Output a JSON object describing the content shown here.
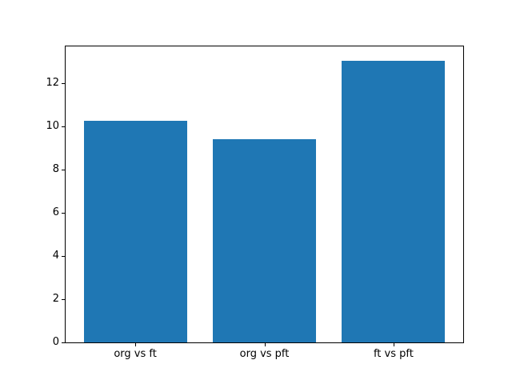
{
  "figure": {
    "background": "#ffffff",
    "spine_color": "#000000",
    "text_color": "#000000"
  },
  "chart_data": {
    "type": "bar",
    "title": "",
    "xlabel": "",
    "ylabel": "",
    "categories": [
      "org vs ft",
      "org vs pft",
      "ft vs pft"
    ],
    "values": [
      10.25,
      9.4,
      13.05
    ],
    "bar_color": "#1f77b4",
    "bar_width_fraction": 0.8,
    "xlim": [
      -0.54,
      2.54
    ],
    "ylim": [
      0,
      13.7
    ],
    "yticks": [
      0,
      2,
      4,
      6,
      8,
      10,
      12
    ],
    "grid": false,
    "legend": null
  }
}
